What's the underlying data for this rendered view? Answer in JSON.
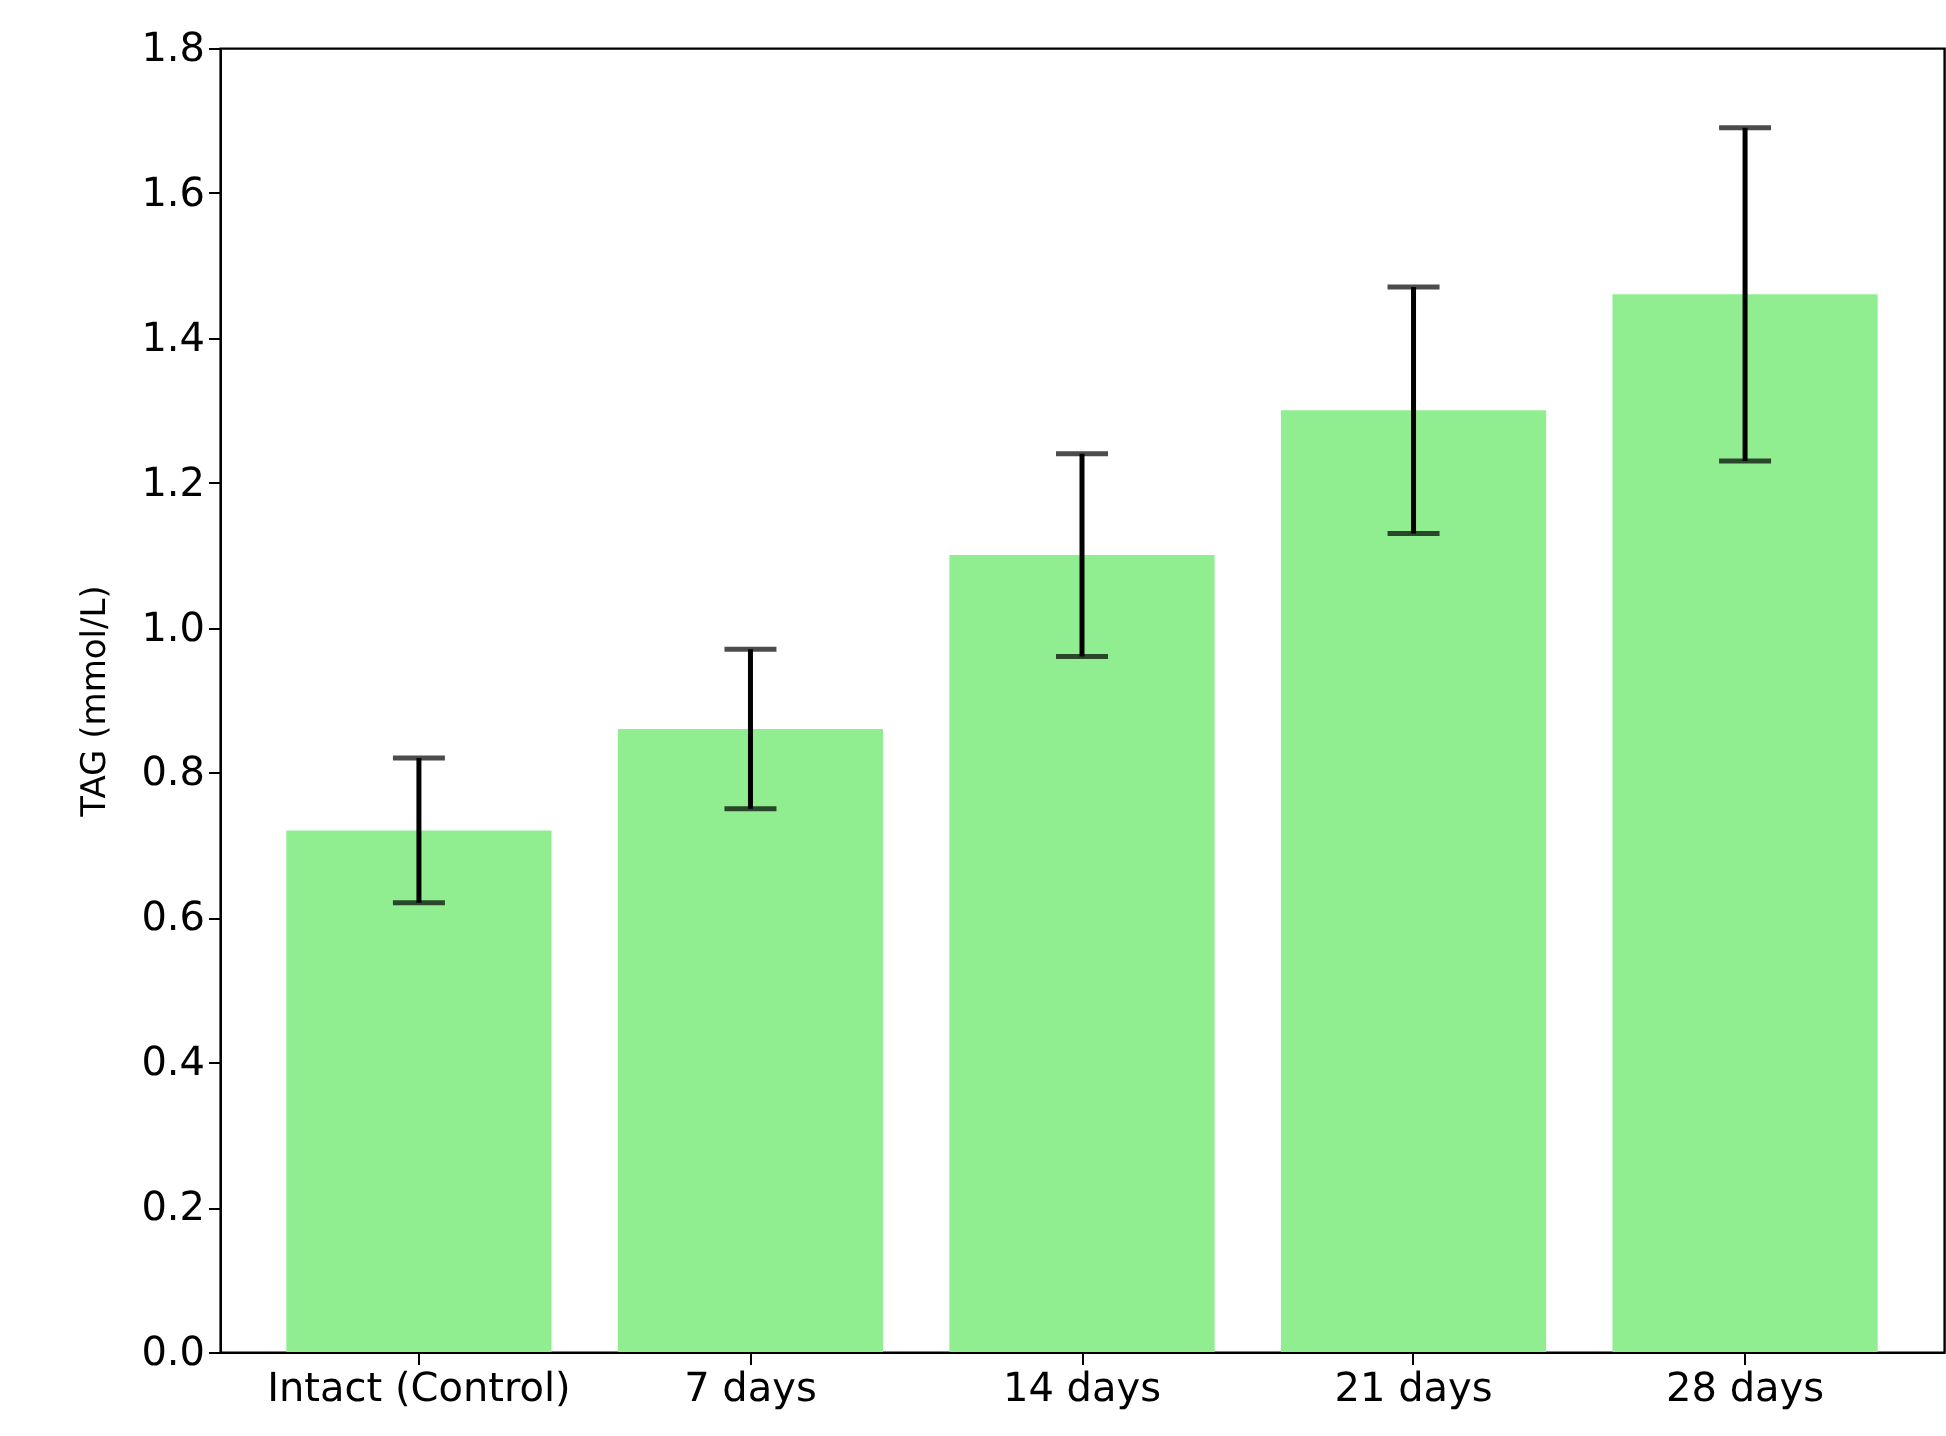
{
  "chart_data": {
    "type": "bar",
    "ylabel": "TAG (mmol/L)",
    "categories": [
      "Intact (Control)",
      "7 days",
      "14 days",
      "21 days",
      "28 days"
    ],
    "values": [
      0.72,
      0.86,
      1.1,
      1.3,
      1.46
    ],
    "errors": [
      [
        0.62,
        0.82
      ],
      [
        0.75,
        0.97
      ],
      [
        0.96,
        1.24
      ],
      [
        1.13,
        1.47
      ],
      [
        1.23,
        1.69
      ]
    ],
    "color": "#90ee90",
    "ylim": [
      0,
      1.8
    ],
    "yticks": [
      {
        "value": 0,
        "label": "0.0"
      },
      {
        "value": 0.2,
        "label": "0.2"
      },
      {
        "value": 0.4,
        "label": "0.4"
      },
      {
        "value": 0.6,
        "label": "0.6"
      },
      {
        "value": 0.8,
        "label": "0.8"
      },
      {
        "value": 1.0,
        "label": "1.0"
      },
      {
        "value": 1.2,
        "label": "1.2"
      },
      {
        "value": 1.4,
        "label": "1.4"
      },
      {
        "value": 1.6,
        "label": "1.6"
      },
      {
        "value": 1.8,
        "label": "1.8"
      }
    ],
    "grid": false
  }
}
